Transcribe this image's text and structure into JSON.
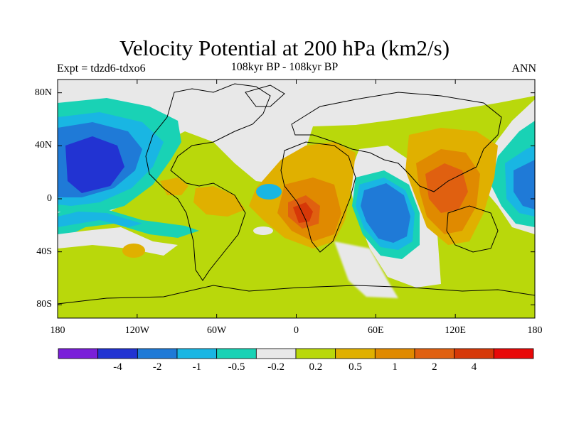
{
  "header": {
    "title": "Velocity Potential at 200 hPa (km2/s)",
    "left": "Expt = tdzd6-tdxo6",
    "center": "108kyr BP - 108kyr BP",
    "right": "ANN"
  },
  "axes": {
    "lat_ticks": [
      {
        "value": 80,
        "label": "80N"
      },
      {
        "value": 40,
        "label": "40N"
      },
      {
        "value": 0,
        "label": "0"
      },
      {
        "value": -40,
        "label": "40S"
      },
      {
        "value": -80,
        "label": "80S"
      }
    ],
    "lon_ticks": [
      {
        "value": -180,
        "label": "180"
      },
      {
        "value": -120,
        "label": "120W"
      },
      {
        "value": -60,
        "label": "60W"
      },
      {
        "value": 0,
        "label": "0"
      },
      {
        "value": 60,
        "label": "60E"
      },
      {
        "value": 120,
        "label": "120E"
      },
      {
        "value": 180,
        "label": "180"
      }
    ]
  },
  "colorbar": {
    "colors": [
      "#7a1fd9",
      "#2233d2",
      "#1f7ad7",
      "#19b6e3",
      "#19d2b5",
      "#e8e8e8",
      "#b9d80b",
      "#e0b000",
      "#e08a00",
      "#e06010",
      "#d63808",
      "#e80808"
    ],
    "labels": [
      "-4",
      "-2",
      "-1",
      "-0.5",
      "-0.2",
      "0.2",
      "0.5",
      "1",
      "2",
      "4"
    ]
  },
  "colors": {
    "background_field": "#b9d80b",
    "coastline": "#000000"
  }
}
